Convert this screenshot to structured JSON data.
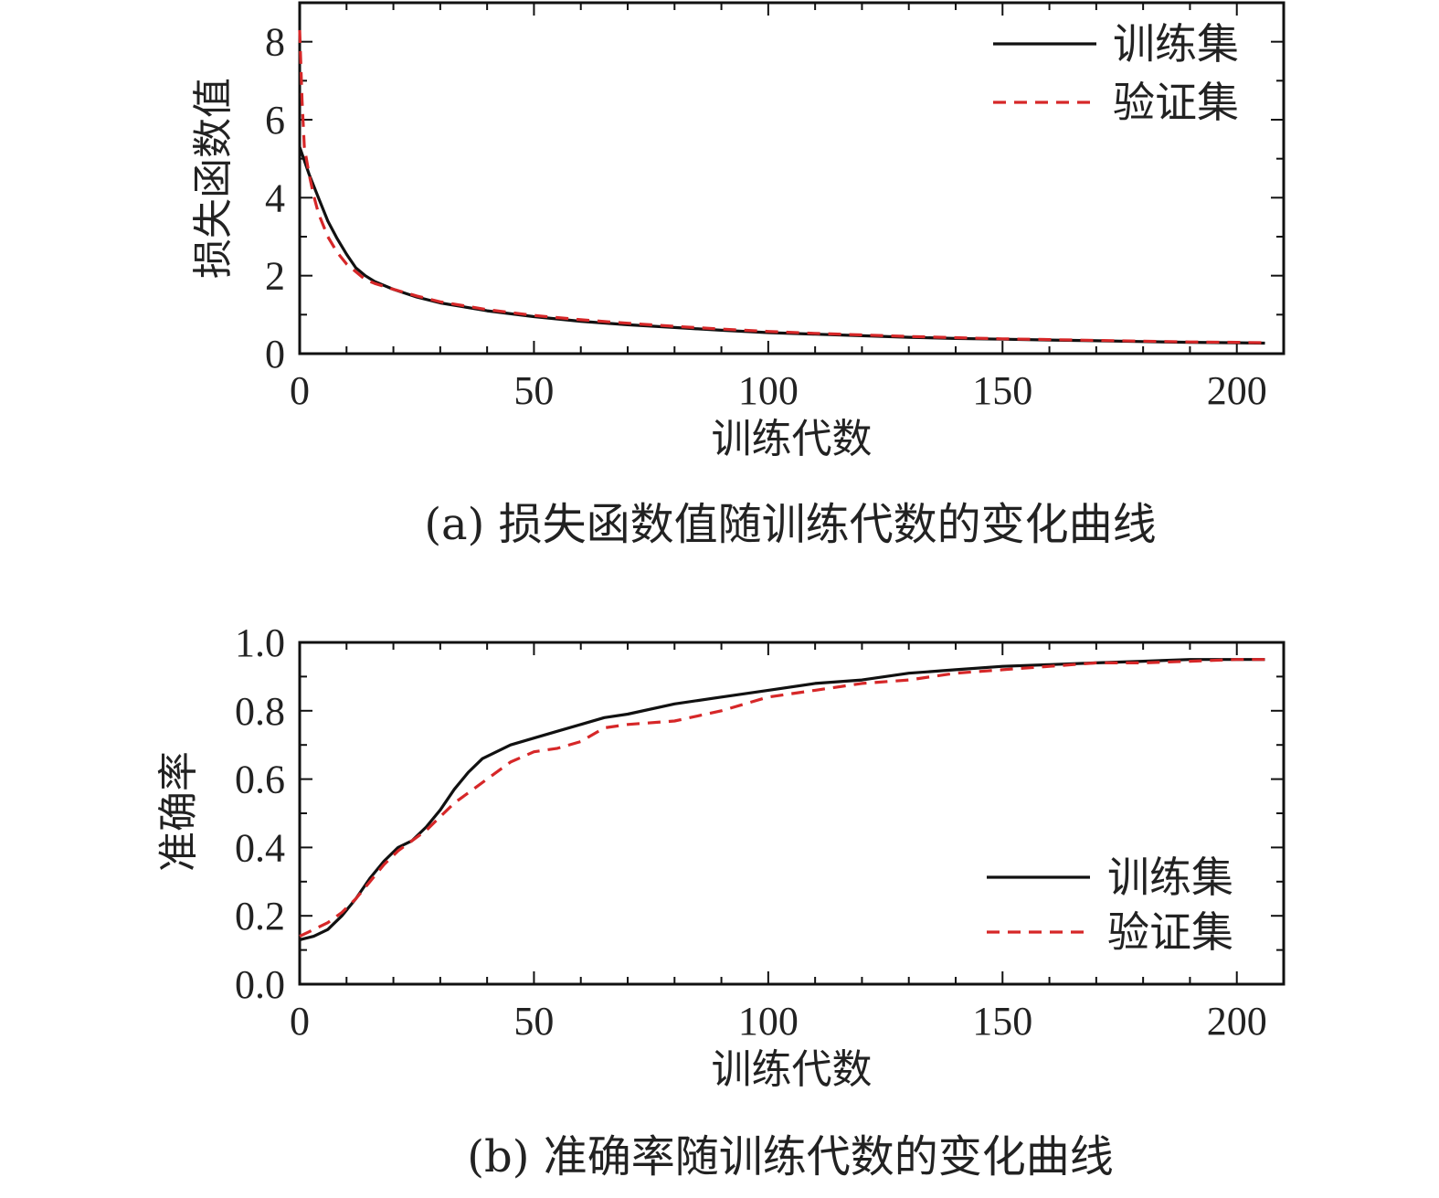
{
  "chart_data": [
    {
      "id": "a",
      "type": "line",
      "caption": "(a) 损失函数值随训练代数的变化曲线",
      "xlabel": "训练代数",
      "ylabel": "损失函数值",
      "xlim": [
        0,
        210
      ],
      "ylim": [
        0,
        9
      ],
      "xticks": [
        0,
        50,
        100,
        150,
        200
      ],
      "yticks": [
        0,
        2,
        4,
        6,
        8
      ],
      "grid": false,
      "legend_position": "top-right",
      "series": [
        {
          "name": "训练集",
          "color": "#111111",
          "style": "solid",
          "x": [
            0,
            2,
            4,
            6,
            8,
            10,
            12,
            14,
            16,
            20,
            25,
            30,
            40,
            50,
            60,
            70,
            80,
            90,
            100,
            110,
            120,
            130,
            140,
            150,
            160,
            170,
            180,
            190,
            200,
            206
          ],
          "y": [
            5.3,
            4.6,
            4.0,
            3.4,
            2.95,
            2.55,
            2.2,
            2.0,
            1.85,
            1.65,
            1.45,
            1.3,
            1.1,
            0.95,
            0.83,
            0.74,
            0.67,
            0.6,
            0.54,
            0.5,
            0.46,
            0.42,
            0.39,
            0.37,
            0.35,
            0.33,
            0.31,
            0.29,
            0.28,
            0.27
          ]
        },
        {
          "name": "验证集",
          "color": "#d62728",
          "style": "dashed",
          "x": [
            0,
            0.5,
            1,
            2,
            3,
            4,
            6,
            8,
            10,
            12,
            14,
            16,
            20,
            25,
            30,
            40,
            50,
            60,
            70,
            80,
            90,
            100,
            110,
            120,
            130,
            140,
            150,
            160,
            170,
            180,
            190,
            200,
            206
          ],
          "y": [
            8.3,
            6.5,
            5.3,
            4.6,
            4.05,
            3.6,
            3.0,
            2.6,
            2.3,
            2.1,
            1.9,
            1.8,
            1.65,
            1.48,
            1.33,
            1.13,
            0.98,
            0.87,
            0.78,
            0.7,
            0.63,
            0.57,
            0.52,
            0.48,
            0.44,
            0.41,
            0.38,
            0.36,
            0.34,
            0.32,
            0.3,
            0.29,
            0.28
          ]
        }
      ]
    },
    {
      "id": "b",
      "type": "line",
      "caption": "(b) 准确率随训练代数的变化曲线",
      "xlabel": "训练代数",
      "ylabel": "准确率",
      "xlim": [
        0,
        210
      ],
      "ylim": [
        0,
        1.0
      ],
      "xticks": [
        0,
        50,
        100,
        150,
        200
      ],
      "yticks": [
        0.0,
        0.2,
        0.4,
        0.6,
        0.8,
        1.0
      ],
      "ytick_labels": [
        "0.0",
        "0.2",
        "0.4",
        "0.6",
        "0.8",
        "1.0"
      ],
      "grid": false,
      "legend_position": "lower-right",
      "series": [
        {
          "name": "训练集",
          "color": "#111111",
          "style": "solid",
          "x": [
            0,
            3,
            6,
            9,
            12,
            15,
            18,
            21,
            24,
            27,
            30,
            33,
            36,
            39,
            42,
            45,
            50,
            55,
            60,
            65,
            70,
            80,
            90,
            100,
            110,
            120,
            130,
            140,
            150,
            160,
            170,
            180,
            190,
            200,
            206
          ],
          "y": [
            0.13,
            0.14,
            0.16,
            0.2,
            0.25,
            0.31,
            0.36,
            0.4,
            0.42,
            0.46,
            0.51,
            0.57,
            0.62,
            0.66,
            0.68,
            0.7,
            0.72,
            0.74,
            0.76,
            0.78,
            0.79,
            0.82,
            0.84,
            0.86,
            0.88,
            0.89,
            0.91,
            0.92,
            0.93,
            0.935,
            0.94,
            0.945,
            0.95,
            0.95,
            0.95
          ]
        },
        {
          "name": "验证集",
          "color": "#d62728",
          "style": "dashed",
          "x": [
            0,
            3,
            6,
            9,
            12,
            15,
            18,
            21,
            24,
            27,
            30,
            33,
            36,
            40,
            45,
            50,
            55,
            60,
            65,
            70,
            80,
            90,
            100,
            110,
            120,
            130,
            140,
            150,
            160,
            170,
            180,
            190,
            200,
            206
          ],
          "y": [
            0.14,
            0.16,
            0.18,
            0.21,
            0.25,
            0.3,
            0.35,
            0.39,
            0.42,
            0.45,
            0.49,
            0.53,
            0.56,
            0.6,
            0.65,
            0.68,
            0.69,
            0.71,
            0.75,
            0.76,
            0.77,
            0.8,
            0.84,
            0.86,
            0.88,
            0.89,
            0.91,
            0.92,
            0.93,
            0.94,
            0.94,
            0.945,
            0.95,
            0.95
          ]
        }
      ]
    }
  ]
}
